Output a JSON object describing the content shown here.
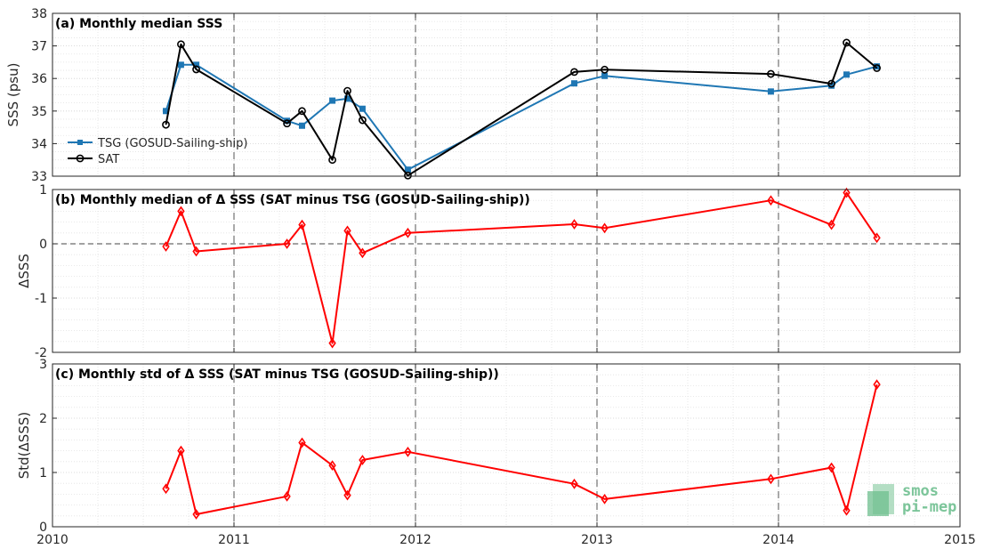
{
  "chart_data": [
    {
      "type": "line",
      "title": "(a) Monthly median SSS",
      "ylabel": "SSS (psu)",
      "xlim": [
        2010,
        2015
      ],
      "ylim": [
        33,
        38
      ],
      "yticks": [
        "33",
        "34",
        "35",
        "36",
        "37",
        "38"
      ],
      "xticks": [
        "2010",
        "2011",
        "2012",
        "2013",
        "2014",
        "2015"
      ],
      "legend_position": "lower-left",
      "grid": true,
      "series": [
        {
          "name": "TSG (GOSUD-Sailing-ship)",
          "color": "#1f77b4",
          "marker": "square",
          "x": [
            2010.625,
            2010.708,
            2010.792,
            2011.292,
            2011.375,
            2011.542,
            2011.625,
            2011.708,
            2011.958,
            2012.875,
            2013.042,
            2013.958,
            2014.292,
            2014.375,
            2014.542
          ],
          "values": [
            35.0,
            36.42,
            36.42,
            34.7,
            34.55,
            35.32,
            35.38,
            35.07,
            33.2,
            35.85,
            36.08,
            35.6,
            35.78,
            36.12,
            36.37
          ]
        },
        {
          "name": "SAT",
          "color": "#000000",
          "marker": "circle",
          "x": [
            2010.625,
            2010.708,
            2010.792,
            2011.292,
            2011.375,
            2011.542,
            2011.625,
            2011.708,
            2011.958,
            2012.875,
            2013.042,
            2013.958,
            2014.292,
            2014.375,
            2014.542
          ],
          "values": [
            34.58,
            37.05,
            36.28,
            34.62,
            35.0,
            33.5,
            35.62,
            34.72,
            33.02,
            36.2,
            36.27,
            36.14,
            35.84,
            37.1,
            36.32
          ]
        }
      ]
    },
    {
      "type": "line",
      "title": "(b) Monthly median of Δ SSS (SAT minus TSG (GOSUD-Sailing-ship))",
      "ylabel": "ΔSSS",
      "xlim": [
        2010,
        2015
      ],
      "ylim": [
        -2,
        1
      ],
      "yticks": [
        "-2",
        "-1",
        "0",
        "1"
      ],
      "grid": true,
      "zero_line": true,
      "series": [
        {
          "color": "#ff0000",
          "marker": "diamond",
          "x": [
            2010.625,
            2010.708,
            2010.792,
            2011.292,
            2011.375,
            2011.542,
            2011.625,
            2011.708,
            2011.958,
            2012.875,
            2013.042,
            2013.958,
            2014.292,
            2014.375,
            2014.542
          ],
          "values": [
            -0.05,
            0.6,
            -0.14,
            0.0,
            0.35,
            -1.83,
            0.24,
            -0.17,
            0.2,
            0.36,
            0.29,
            0.8,
            0.35,
            0.94,
            0.11
          ]
        }
      ]
    },
    {
      "type": "line",
      "title": "(c) Monthly std of Δ SSS (SAT minus TSG (GOSUD-Sailing-ship))",
      "ylabel": "Std(ΔSSS)",
      "xlim": [
        2010,
        2015
      ],
      "ylim": [
        0,
        3
      ],
      "yticks": [
        "0",
        "1",
        "2",
        "3"
      ],
      "grid": true,
      "series": [
        {
          "color": "#ff0000",
          "marker": "diamond",
          "x": [
            2010.625,
            2010.708,
            2010.792,
            2011.292,
            2011.375,
            2011.542,
            2011.625,
            2011.708,
            2011.958,
            2012.875,
            2013.042,
            2013.958,
            2014.292,
            2014.375,
            2014.542
          ],
          "values": [
            0.7,
            1.4,
            0.23,
            0.56,
            1.55,
            1.13,
            0.58,
            1.23,
            1.38,
            0.79,
            0.51,
            0.88,
            1.09,
            0.3,
            2.62
          ]
        }
      ]
    }
  ],
  "logo": {
    "line1": "smos",
    "line2": "pi-mep"
  }
}
